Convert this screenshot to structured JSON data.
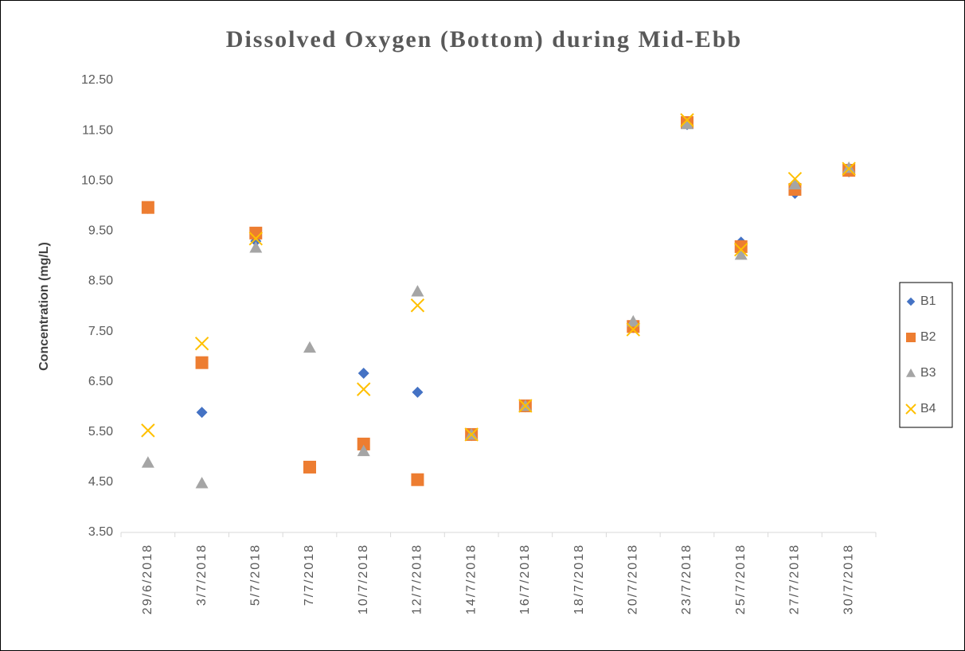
{
  "chart_data": {
    "type": "scatter",
    "title": "Dissolved Oxygen (Bottom) during Mid-Ebb",
    "y_label": "Concentration (mg/L)",
    "categories": [
      "29/6/2018",
      "3/7/2018",
      "5/7/2018",
      "7/7/2018",
      "10/7/2018",
      "12/7/2018",
      "14/7/2018",
      "16/7/2018",
      "18/7/2018",
      "20/7/2018",
      "23/7/2018",
      "25/7/2018",
      "27/7/2018",
      "30/7/2018"
    ],
    "series": [
      {
        "name": "B1",
        "color": "#4472c4",
        "marker": "diamond",
        "values": [
          9.95,
          5.89,
          9.3,
          null,
          6.67,
          6.29,
          5.43,
          6.0,
          null,
          7.58,
          11.62,
          9.28,
          10.25,
          10.68
        ]
      },
      {
        "name": "B2",
        "color": "#ed7d31",
        "marker": "square",
        "values": [
          9.97,
          6.88,
          9.46,
          4.8,
          5.26,
          4.55,
          5.45,
          6.02,
          null,
          7.6,
          11.66,
          9.19,
          10.33,
          10.71
        ]
      },
      {
        "name": "B3",
        "color": "#a5a5a5",
        "marker": "triangle",
        "values": [
          4.89,
          4.48,
          9.17,
          7.18,
          5.12,
          8.3,
          5.45,
          6.02,
          null,
          7.7,
          11.63,
          9.03,
          10.43,
          10.76
        ]
      },
      {
        "name": "B4",
        "color": "#ffc000",
        "marker": "x",
        "values": [
          5.53,
          7.26,
          9.35,
          null,
          6.35,
          8.02,
          5.45,
          6.02,
          null,
          7.54,
          11.71,
          9.13,
          10.54,
          10.74
        ]
      }
    ],
    "ylim": [
      3.5,
      12.5
    ],
    "yticks": [
      {
        "value": 3.5,
        "label": "3.50"
      },
      {
        "value": 4.5,
        "label": "4.50"
      },
      {
        "value": 5.5,
        "label": "5.50"
      },
      {
        "value": 6.5,
        "label": "6.50"
      },
      {
        "value": 7.5,
        "label": "7.50"
      },
      {
        "value": 8.5,
        "label": "8.50"
      },
      {
        "value": 9.5,
        "label": "9.50"
      },
      {
        "value": 10.5,
        "label": "10.50"
      },
      {
        "value": 11.5,
        "label": "11.50"
      },
      {
        "value": 12.5,
        "label": "12.50"
      }
    ],
    "grid": false,
    "legend": "right"
  }
}
